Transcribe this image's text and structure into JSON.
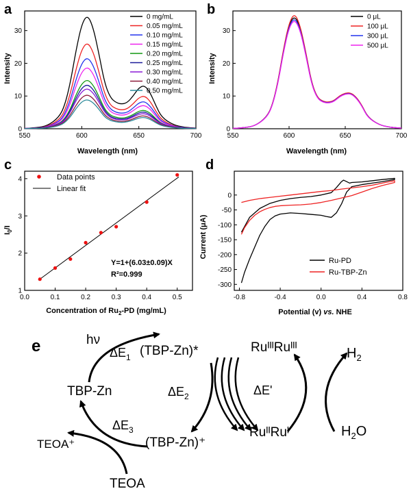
{
  "colors": {
    "black": "#000000",
    "red": "#ee2222",
    "blue": "#2233ee",
    "magenta": "#ee22ee",
    "green": "#119911",
    "navy": "#1a1a99",
    "purple": "#8a1ad6",
    "maroon": "#8b1a3a",
    "teal": "#2a8a9a",
    "points": "#ee1111"
  },
  "chart_data": [
    {
      "id": "a",
      "type": "line",
      "panel_label": "a",
      "xlabel": "Wavelength (nm)",
      "ylabel": "Intensity",
      "xlim": [
        550,
        700
      ],
      "ylim": [
        0,
        36
      ],
      "x_ticks": [
        550,
        600,
        650,
        700
      ],
      "y_ticks": [
        0,
        10,
        20,
        30
      ],
      "legend_position": "top-right",
      "x": [
        550,
        560,
        570,
        580,
        585,
        590,
        595,
        600,
        605,
        610,
        615,
        620,
        625,
        630,
        635,
        640,
        645,
        650,
        655,
        660,
        665,
        670,
        680,
        690,
        700
      ],
      "series": [
        {
          "name": "0 mg/mL",
          "color": "#000000",
          "values": [
            0.1,
            0.3,
            0.9,
            3.5,
            7.0,
            14.0,
            24.0,
            32.0,
            34.9,
            31.0,
            23.0,
            14.0,
            9.5,
            8.0,
            7.5,
            8.0,
            10.0,
            12.5,
            13.3,
            11.0,
            7.0,
            3.5,
            1.2,
            0.4,
            0.2
          ]
        },
        {
          "name": "0.05 mg/mL",
          "color": "#ee2222",
          "values": [
            0.1,
            0.2,
            0.7,
            2.7,
            5.3,
            10.7,
            18.2,
            24.3,
            26.5,
            23.6,
            17.5,
            10.7,
            7.2,
            6.1,
            5.7,
            6.1,
            7.6,
            9.5,
            10.1,
            8.4,
            5.3,
            2.7,
            0.9,
            0.3,
            0.15
          ]
        },
        {
          "name": "0.10 mg/mL",
          "color": "#2233ee",
          "values": [
            0.1,
            0.2,
            0.6,
            2.2,
            4.4,
            8.8,
            15.1,
            20.1,
            21.9,
            19.5,
            14.5,
            8.8,
            6.0,
            5.0,
            4.7,
            5.0,
            6.3,
            7.9,
            8.4,
            6.9,
            4.4,
            2.2,
            0.8,
            0.3,
            0.1
          ]
        },
        {
          "name": "0.15 mg/mL",
          "color": "#ee22ee",
          "values": [
            0.1,
            0.2,
            0.5,
            1.9,
            3.8,
            7.6,
            13.1,
            17.4,
            19.0,
            16.9,
            12.5,
            7.6,
            5.2,
            4.4,
            4.1,
            4.4,
            5.5,
            6.8,
            7.2,
            6.0,
            3.8,
            1.9,
            0.7,
            0.2,
            0.1
          ]
        },
        {
          "name": "0.20 mg/mL",
          "color": "#119911",
          "values": [
            0.05,
            0.2,
            0.4,
            1.5,
            3.0,
            6.0,
            10.4,
            13.8,
            15.1,
            13.4,
            9.9,
            6.0,
            4.1,
            3.5,
            3.2,
            3.5,
            4.3,
            5.4,
            5.7,
            4.8,
            3.0,
            1.5,
            0.5,
            0.2,
            0.1
          ]
        },
        {
          "name": "0.25 mg/mL",
          "color": "#1a1a99",
          "values": [
            0.05,
            0.2,
            0.4,
            1.4,
            2.7,
            5.5,
            9.4,
            12.5,
            13.6,
            12.1,
            9.0,
            5.5,
            3.7,
            3.1,
            2.9,
            3.1,
            3.9,
            4.9,
            5.2,
            4.3,
            2.7,
            1.4,
            0.5,
            0.2,
            0.1
          ]
        },
        {
          "name": "0.30 mg/mL",
          "color": "#8a1ad6",
          "values": [
            0.05,
            0.1,
            0.3,
            1.3,
            2.5,
            5.0,
            8.6,
            11.4,
            12.4,
            11.0,
            8.2,
            5.0,
            3.4,
            2.8,
            2.7,
            2.8,
            3.6,
            4.4,
            4.7,
            3.9,
            2.5,
            1.3,
            0.4,
            0.15,
            0.1
          ]
        },
        {
          "name": "0.40 mg/mL",
          "color": "#8b1a3a",
          "values": [
            0.05,
            0.1,
            0.3,
            1.1,
            2.1,
            4.2,
            7.2,
            9.6,
            10.5,
            9.3,
            6.9,
            4.2,
            2.9,
            2.4,
            2.2,
            2.4,
            3.0,
            3.8,
            4.0,
            3.3,
            2.1,
            1.1,
            0.4,
            0.1,
            0.05
          ]
        },
        {
          "name": "0.50 mg/mL",
          "color": "#2a8a9a",
          "values": [
            0.05,
            0.1,
            0.2,
            0.9,
            1.8,
            3.6,
            6.2,
            8.3,
            9.0,
            8.0,
            6.0,
            3.6,
            2.5,
            2.1,
            1.9,
            2.1,
            2.6,
            3.3,
            3.5,
            2.9,
            1.8,
            0.9,
            0.3,
            0.1,
            0.05
          ]
        }
      ]
    },
    {
      "id": "b",
      "type": "line",
      "panel_label": "b",
      "xlabel": "Wavelength (nm)",
      "ylabel": "Intensity",
      "xlim": [
        550,
        700
      ],
      "ylim": [
        0,
        36
      ],
      "x_ticks": [
        550,
        600,
        650,
        700
      ],
      "y_ticks": [
        0,
        10,
        20,
        30
      ],
      "legend_position": "top-right",
      "x": [
        550,
        560,
        570,
        580,
        585,
        590,
        595,
        600,
        605,
        610,
        615,
        620,
        625,
        630,
        635,
        640,
        645,
        650,
        655,
        660,
        665,
        670,
        680,
        690,
        700
      ],
      "series": [
        {
          "name": "0 μL",
          "color": "#000000",
          "values": [
            0.1,
            0.3,
            0.9,
            3.5,
            7.0,
            14.0,
            24.0,
            32.0,
            34.6,
            31.0,
            23.0,
            14.0,
            9.5,
            8.3,
            8.0,
            8.5,
            10.0,
            10.8,
            10.9,
            9.5,
            7.0,
            3.5,
            1.2,
            0.4,
            0.2
          ]
        },
        {
          "name": "100 μL",
          "color": "#ee2222",
          "values": [
            0.1,
            0.3,
            0.9,
            3.6,
            7.1,
            14.2,
            24.3,
            32.4,
            35.4,
            31.4,
            23.3,
            14.2,
            9.6,
            8.4,
            8.1,
            8.6,
            10.1,
            10.9,
            11.0,
            9.6,
            7.1,
            3.6,
            1.2,
            0.4,
            0.2
          ]
        },
        {
          "name": "300 μL",
          "color": "#2233ee",
          "values": [
            0.1,
            0.3,
            0.9,
            3.5,
            6.9,
            13.8,
            23.6,
            31.5,
            34.0,
            30.5,
            22.6,
            13.8,
            9.4,
            8.2,
            7.9,
            8.4,
            9.9,
            10.7,
            10.8,
            9.4,
            6.9,
            3.5,
            1.2,
            0.4,
            0.2
          ]
        },
        {
          "name": "500 μL",
          "color": "#ee22ee",
          "values": [
            0.1,
            0.3,
            0.9,
            3.4,
            6.8,
            13.6,
            23.3,
            31.0,
            33.5,
            30.0,
            22.3,
            13.6,
            9.3,
            8.1,
            7.8,
            8.3,
            9.8,
            10.6,
            10.7,
            9.3,
            6.8,
            3.4,
            1.2,
            0.4,
            0.2
          ]
        }
      ]
    },
    {
      "id": "c",
      "type": "scatter",
      "panel_label": "c",
      "xlabel_main": "Concentration of Ru",
      "xlabel_sub": "2",
      "xlabel_tail": "-PD (mg/mL)",
      "ylabel_main": "I",
      "ylabel_sub": "0",
      "ylabel_tail": "/I",
      "xlim": [
        0,
        0.55
      ],
      "ylim": [
        1,
        4.2
      ],
      "x_ticks": [
        "0.0",
        "0.1",
        "0.2",
        "0.3",
        "0.4",
        "0.5"
      ],
      "x_tick_values": [
        0,
        0.1,
        0.2,
        0.3,
        0.4,
        0.5
      ],
      "y_ticks": [
        1,
        2,
        3,
        4
      ],
      "legend_position": "top-left",
      "legend": {
        "points": "Data points",
        "fit": "Linear fit"
      },
      "points": {
        "x": [
          0.05,
          0.1,
          0.15,
          0.2,
          0.25,
          0.3,
          0.4,
          0.5
        ],
        "y": [
          1.3,
          1.6,
          1.84,
          2.28,
          2.55,
          2.71,
          3.37,
          4.1
        ]
      },
      "fit": {
        "intercept": 1,
        "slope": 6.03,
        "x_range": [
          0.045,
          0.505
        ]
      },
      "annotation": [
        "Y=1+(6.03±0.09)X",
        "R²=0.999"
      ]
    },
    {
      "id": "d",
      "type": "line",
      "panel_label": "d",
      "xlabel_main": "Potential (v) ",
      "xlabel_italic": "vs.",
      "xlabel_tail": " NHE",
      "ylabel": "Current (μA)",
      "xlim": [
        -0.85,
        0.8
      ],
      "ylim": [
        -320,
        80
      ],
      "x_ticks": [
        "-0.8",
        "-0.4",
        "0.0",
        "0.4",
        "0.8"
      ],
      "x_tick_values": [
        -0.8,
        -0.4,
        0.0,
        0.4,
        0.8
      ],
      "y_ticks": [
        0,
        -50,
        -100,
        -150,
        -200,
        -250,
        -300
      ],
      "legend_position": "bottom-right",
      "series": [
        {
          "name": "Ru-PD",
          "color": "#000000",
          "x": [
            -0.78,
            -0.75,
            -0.7,
            -0.65,
            -0.6,
            -0.55,
            -0.5,
            -0.45,
            -0.4,
            -0.3,
            -0.2,
            -0.1,
            0.0,
            0.05,
            0.1,
            0.15,
            0.2,
            0.25,
            0.3,
            0.4,
            0.5,
            0.6,
            0.72,
            0.72,
            0.6,
            0.5,
            0.4,
            0.3,
            0.28,
            0.25,
            0.22,
            0.2,
            0.15,
            0.1,
            0.0,
            -0.1,
            -0.2,
            -0.3,
            -0.4,
            -0.5,
            -0.6,
            -0.7,
            -0.78
          ],
          "y": [
            -295,
            -260,
            -215,
            -175,
            -135,
            -105,
            -82,
            -70,
            -64,
            -60,
            -62,
            -65,
            -68,
            -72,
            -75,
            -60,
            -30,
            10,
            28,
            35,
            40,
            45,
            52,
            56,
            52,
            48,
            44,
            42,
            40,
            45,
            50,
            45,
            25,
            8,
            0,
            -5,
            -8,
            -12,
            -18,
            -28,
            -45,
            -75,
            -125
          ]
        },
        {
          "name": "Ru-TBP-Zn",
          "color": "#ee2222",
          "x": [
            -0.78,
            -0.75,
            -0.7,
            -0.65,
            -0.6,
            -0.55,
            -0.5,
            -0.45,
            -0.4,
            -0.3,
            -0.2,
            -0.1,
            0.0,
            0.1,
            0.2,
            0.3,
            0.4,
            0.5,
            0.6,
            0.72,
            0.72,
            0.6,
            0.5,
            0.4,
            0.3,
            0.2,
            0.1,
            0.0,
            -0.1,
            -0.2,
            -0.3,
            -0.4,
            -0.5,
            -0.6,
            -0.7,
            -0.78
          ],
          "y": [
            -132,
            -110,
            -85,
            -68,
            -56,
            -48,
            -42,
            -38,
            -36,
            -34,
            -33,
            -30,
            -25,
            -18,
            -10,
            -2,
            10,
            22,
            32,
            42,
            48,
            40,
            33,
            28,
            24,
            20,
            15,
            12,
            8,
            4,
            0,
            -4,
            -8,
            -12,
            -18,
            -25
          ]
        }
      ]
    }
  ],
  "scheme": {
    "panel_label": "e",
    "hv": "hν",
    "dE1": "ΔE",
    "dE1_sub": "1",
    "dE2": "ΔE",
    "dE2_sub": "2",
    "dE3": "ΔE",
    "dE3_sub": "3",
    "dEp": "ΔE'",
    "tbp_excited": "(TBP-Zn)*",
    "tbp_ground": "TBP-Zn",
    "tbp_cation": "(TBP-Zn)⁺",
    "ru_high": "RuᴵᴵᴵRuᴵᴵᴵ",
    "ru_low": "RuᴵᴵRuᴵ",
    "h2": "H",
    "h2_sub": "2",
    "h2o": "H",
    "h2o_sub": "2",
    "h2o_tail": "O",
    "teoa_plus": "TEOA⁺",
    "teoa": "TEOA"
  }
}
